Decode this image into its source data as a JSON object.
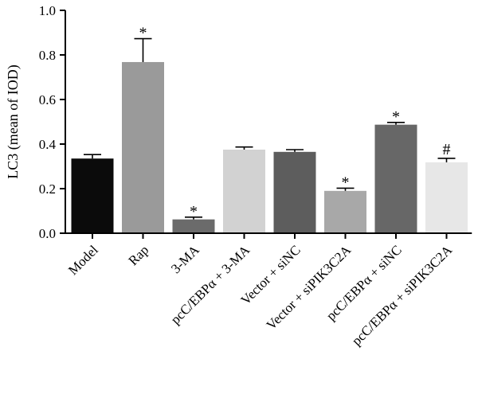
{
  "chart_data": {
    "type": "bar",
    "ylabel": "LC3 (mean of IOD)",
    "ylim": [
      0,
      1.0
    ],
    "yticks": [
      "0.0",
      "0.2",
      "0.4",
      "0.6",
      "0.8",
      "1.0"
    ],
    "categories": [
      "Model",
      "Rap",
      "3-MA",
      "pcC/EBPα + 3-MA",
      "Vector + siNC",
      "Vector + siPIK3C2A",
      "pcC/EBPα + siNC",
      "pcC/EBPα + siPIK3C2A"
    ],
    "values": [
      0.335,
      0.768,
      0.062,
      0.375,
      0.365,
      0.19,
      0.487,
      0.318
    ],
    "errors": [
      0.018,
      0.105,
      0.01,
      0.012,
      0.01,
      0.012,
      0.01,
      0.018
    ],
    "markers": [
      "",
      "*",
      "*",
      "",
      "",
      "*",
      "*",
      "#"
    ],
    "colors": [
      "#0b0b0b",
      "#9a9a9a",
      "#6b6b6b",
      "#d2d2d2",
      "#5d5d5d",
      "#a8a8a8",
      "#676767",
      "#e7e7e7"
    ]
  }
}
